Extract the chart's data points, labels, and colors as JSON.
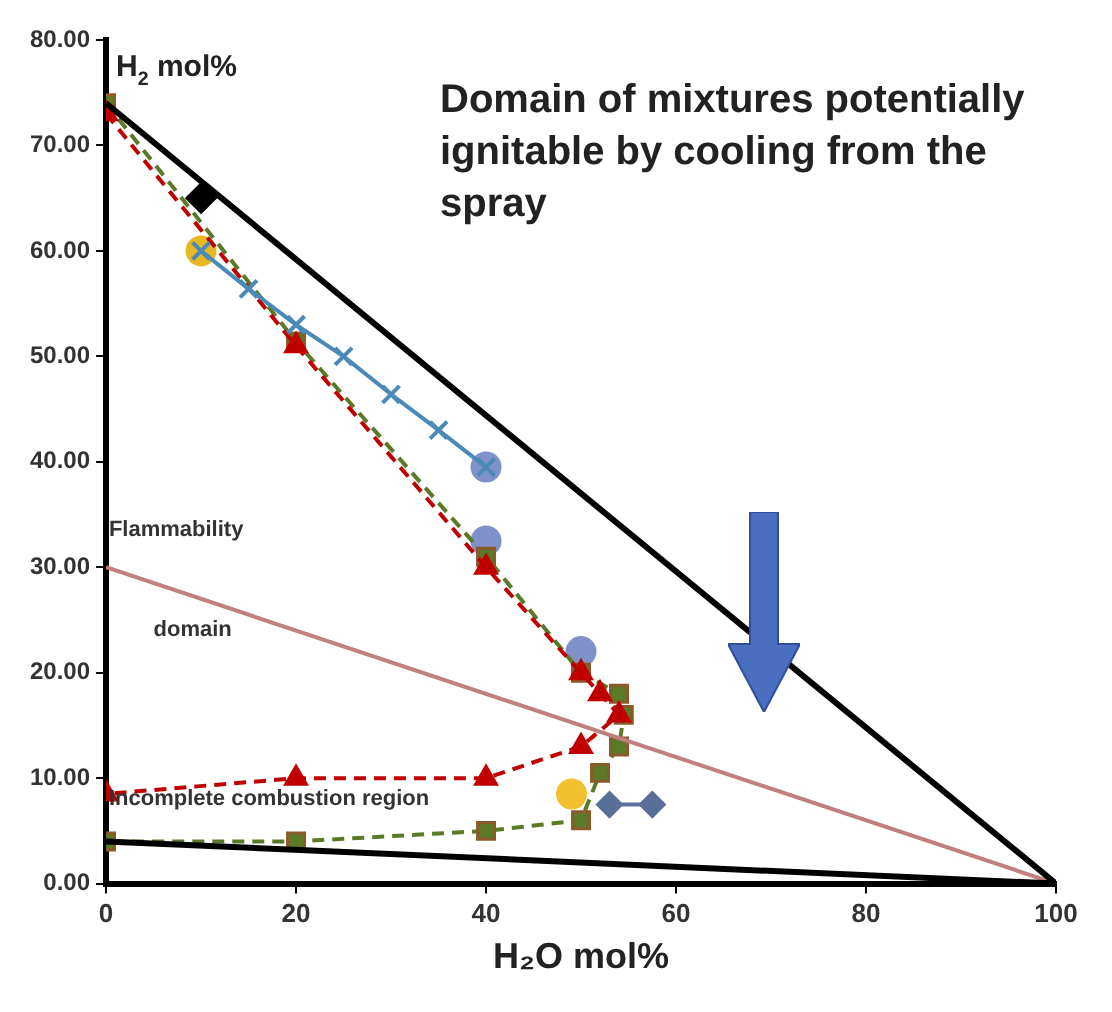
{
  "chart_data": {
    "type": "line",
    "title": "Domain of mixtures potentially ignitable by cooling from the spray",
    "xlabel": "H₂O mol%",
    "ylabel": "H$_{2}$ mol%",
    "xlim": [
      0,
      100
    ],
    "xticks": [
      0,
      20,
      40,
      60,
      80,
      100
    ],
    "ylim": [
      0,
      80
    ],
    "yticks": [
      {
        "value": 0,
        "label": "0.00"
      },
      {
        "value": 10,
        "label": "10.00"
      },
      {
        "value": 20,
        "label": "20.00"
      },
      {
        "value": 30,
        "label": "30.00"
      },
      {
        "value": 40,
        "label": "40.00"
      },
      {
        "value": 50,
        "label": "50.00"
      },
      {
        "value": 60,
        "label": "60.00"
      },
      {
        "value": 70,
        "label": "70.00"
      },
      {
        "value": 80,
        "label": "80.00"
      }
    ],
    "grid": false,
    "legend": false,
    "annotations": [
      "Flammability",
      "domain",
      "Incomplete combustion region"
    ],
    "series": [
      {
        "color": "#000000",
        "marker": "none",
        "line_style": "solid",
        "x": [
          0,
          100
        ],
        "values": [
          74,
          0
        ]
      },
      {
        "color": "#000000",
        "marker": "none",
        "line_style": "solid",
        "x": [
          0,
          100
        ],
        "values": [
          4,
          0
        ]
      },
      {
        "color": "#c0807f",
        "marker": "none",
        "line_style": "solid",
        "x": [
          0,
          100
        ],
        "values": [
          30,
          0
        ]
      },
      {
        "color": "#4a8ab8",
        "marker": "cross",
        "line_style": "solid",
        "x": [
          10,
          15,
          20,
          25,
          30,
          35,
          40
        ],
        "values": [
          60,
          56.4,
          53,
          50,
          46.4,
          43,
          39.5
        ]
      },
      {
        "color": "#c00000",
        "marker": "triangle",
        "line_style": "dashed",
        "x": [
          0,
          20,
          40,
          50,
          52,
          54,
          50,
          40,
          20,
          0
        ],
        "values": [
          73,
          51,
          30,
          20,
          18,
          16,
          13,
          10,
          10,
          8.5
        ]
      },
      {
        "color": "#5a7a28",
        "marker": "square",
        "line_style": "dashed",
        "x": [
          0,
          20,
          40,
          50,
          54,
          54.5,
          54,
          52,
          50,
          40,
          20,
          0
        ],
        "values": [
          74,
          51.4,
          31,
          20,
          18,
          16,
          13,
          10.5,
          6,
          5,
          4,
          4
        ]
      },
      {
        "color": "#5a6e9a",
        "marker": "diamond",
        "line_style": "solid",
        "x": [
          53,
          57.5
        ],
        "values": [
          7.5,
          7.5
        ]
      },
      {
        "type": "scatter",
        "color": "#000000",
        "marker": "diamond",
        "x": [
          10
        ],
        "values": [
          65
        ]
      },
      {
        "type": "scatter",
        "color": "#f0c030",
        "marker": "circle",
        "x": [
          49
        ],
        "values": [
          8.5
        ]
      },
      {
        "type": "scatter",
        "color": "#e8b820",
        "marker": "circle",
        "x": [
          10
        ],
        "values": [
          60
        ]
      },
      {
        "type": "scatter",
        "color": "#8090c8",
        "marker": "circle",
        "x": [
          40,
          50,
          40
        ],
        "values": [
          32.5,
          22,
          39.5
        ]
      }
    ]
  }
}
